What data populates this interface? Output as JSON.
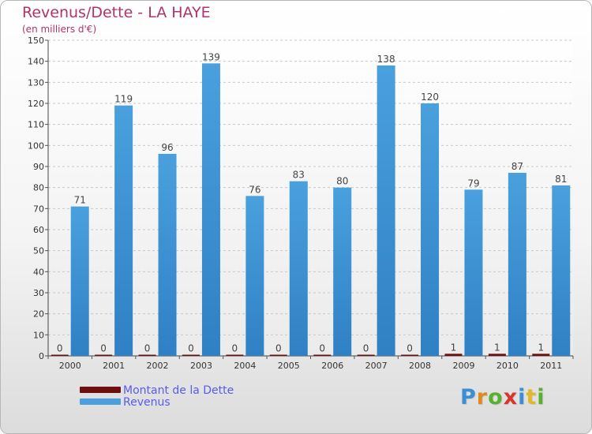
{
  "header": {
    "title": "Revenus/Dette - LA HAYE",
    "subtitle": "(en milliers d'€)"
  },
  "colors": {
    "debt": "#6b0f0f",
    "revenue": "#4aa0dd",
    "revenue_dark": "#2f80c4",
    "title": "#b0336a",
    "legend_text": "#5a5af0"
  },
  "chart_data": {
    "type": "bar",
    "title": "Revenus/Dette - LA HAYE",
    "subtitle": "(en milliers d'€)",
    "xlabel": "",
    "ylabel": "",
    "ylim": [
      0,
      150
    ],
    "yticks": [
      0,
      10,
      20,
      30,
      40,
      50,
      60,
      70,
      80,
      90,
      100,
      110,
      120,
      130,
      140,
      150
    ],
    "grid": true,
    "legend_position": "bottom-left",
    "categories": [
      "2000",
      "2001",
      "2002",
      "2003",
      "2004",
      "2005",
      "2006",
      "2007",
      "2008",
      "2009",
      "2010",
      "2011"
    ],
    "series": [
      {
        "name": "Montant de la Dette",
        "color": "#6b0f0f",
        "values": [
          0,
          0,
          0,
          0,
          0,
          0,
          0,
          0,
          0,
          1,
          1,
          1
        ]
      },
      {
        "name": "Revenus",
        "color": "#4aa0dd",
        "values": [
          71,
          119,
          96,
          139,
          76,
          83,
          80,
          138,
          120,
          79,
          87,
          81
        ]
      }
    ]
  },
  "legend": [
    {
      "label": "Montant de la Dette",
      "color": "#6b0f0f"
    },
    {
      "label": "Revenus",
      "color": "#4aa0dd"
    }
  ],
  "branding": {
    "logo_letters": [
      "P",
      "r",
      "o",
      "x",
      "i",
      "t",
      "i"
    ],
    "logo_colors": [
      "#3a8fd6",
      "#e08a1e",
      "#58b02f",
      "#d8352d",
      "#3a8fd6",
      "#e6b62a",
      "#58b02f"
    ]
  }
}
